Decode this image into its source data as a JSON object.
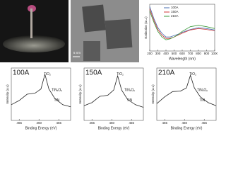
{
  "tem": {
    "scale_label": "5 nm"
  },
  "chart_data": [
    {
      "type": "line",
      "xlabel": "Wavelength (nm)",
      "ylabel": "Extinction (a.u.)",
      "x": [
        200,
        250,
        300,
        350,
        400,
        450,
        500,
        550,
        600,
        700,
        800,
        900,
        1000
      ],
      "xlim": [
        200,
        1000
      ],
      "xticks": [
        200,
        300,
        400,
        500,
        600,
        700,
        800,
        900,
        1000
      ],
      "ylim": [
        0,
        1
      ],
      "series": [
        {
          "name": "100A",
          "color": "#4a6fb0",
          "values": [
            0.95,
            0.7,
            0.5,
            0.38,
            0.3,
            0.3,
            0.33,
            0.36,
            0.4,
            0.46,
            0.5,
            0.48,
            0.45
          ]
        },
        {
          "name": "150A",
          "color": "#d23a3a",
          "values": [
            0.9,
            0.66,
            0.46,
            0.34,
            0.27,
            0.27,
            0.3,
            0.34,
            0.38,
            0.45,
            0.48,
            0.46,
            0.43
          ]
        },
        {
          "name": "210A",
          "color": "#3a9a3a",
          "values": [
            0.85,
            0.62,
            0.42,
            0.3,
            0.24,
            0.26,
            0.3,
            0.35,
            0.42,
            0.52,
            0.55,
            0.52,
            0.48
          ]
        }
      ]
    },
    {
      "type": "line",
      "label": "100A",
      "xlabel": "Binding Energy (eV)",
      "ylabel": "Intensity (a.u)",
      "x": [
        467,
        465,
        463,
        461,
        459.5,
        458.5,
        457.5,
        456,
        454,
        452
      ],
      "xlim": [
        467,
        452
      ],
      "xticks": [
        465,
        460,
        455
      ],
      "ylim": [
        0,
        1
      ],
      "series": [
        {
          "color": "#222",
          "values": [
            0.3,
            0.38,
            0.5,
            0.52,
            0.6,
            0.88,
            0.6,
            0.42,
            0.3,
            0.26
          ]
        }
      ],
      "annotations": [
        "TiO₂",
        "TiNₓOᵧ",
        "TiN"
      ]
    },
    {
      "type": "line",
      "label": "150A",
      "xlabel": "Binding Energy (eV)",
      "ylabel": "Intensity (a.u)",
      "x": [
        467,
        465,
        463,
        461,
        459.5,
        458.5,
        457.5,
        456,
        454,
        452
      ],
      "xlim": [
        467,
        452
      ],
      "xticks": [
        465,
        460,
        455
      ],
      "ylim": [
        0,
        1
      ],
      "series": [
        {
          "color": "#222",
          "values": [
            0.28,
            0.34,
            0.46,
            0.48,
            0.58,
            0.85,
            0.58,
            0.4,
            0.3,
            0.25
          ]
        }
      ],
      "annotations": [
        "TiO₂",
        "TiNₓOᵧ",
        "TiN"
      ]
    },
    {
      "type": "line",
      "label": "210A",
      "xlabel": "Binding Energy (eV)",
      "ylabel": "Intensity (a.u)",
      "x": [
        467,
        465,
        463,
        461,
        459.5,
        458.5,
        457.5,
        456,
        454,
        452
      ],
      "xlim": [
        467,
        452
      ],
      "xticks": [
        465,
        460,
        455
      ],
      "ylim": [
        0,
        1
      ],
      "series": [
        {
          "color": "#222",
          "values": [
            0.32,
            0.45,
            0.55,
            0.56,
            0.62,
            0.86,
            0.62,
            0.45,
            0.34,
            0.28
          ]
        }
      ],
      "annotations": [
        "TiO₂",
        "TiNₓOᵧ",
        "TiN"
      ]
    }
  ]
}
